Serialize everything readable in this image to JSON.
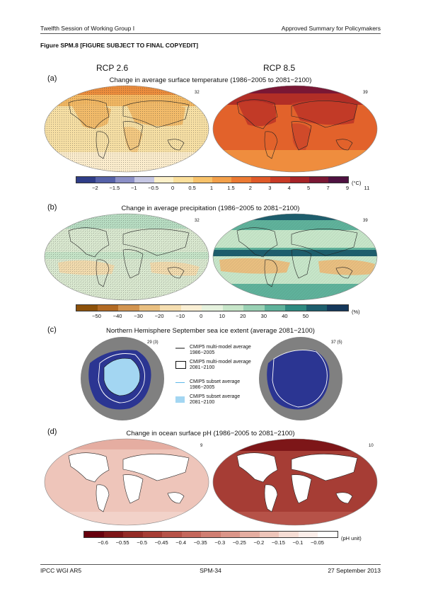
{
  "header": {
    "left": "Twelfth Session of Working Group I",
    "right": "Approved Summary for Policymakers"
  },
  "figure_title": "Figure SPM.8 [FIGURE SUBJECT TO FINAL COPYEDIT]",
  "scenarios": {
    "left": "RCP 2.6",
    "right": "RCP 8.5"
  },
  "panels": {
    "a": {
      "label": "(a)",
      "title": "Change in average surface temperature (1986−2005 to 2081−2100)",
      "left_count": "32",
      "right_count": "39",
      "colorbar": {
        "colors": [
          "#2f3d87",
          "#5561a8",
          "#8b8fc6",
          "#c5c6e3",
          "#fcf0c9",
          "#fbdf9b",
          "#f8c26a",
          "#f3a04a",
          "#ec7a33",
          "#e05a29",
          "#c83a26",
          "#a62327",
          "#7a1734",
          "#4e1140"
        ],
        "ticks": [
          "−2",
          "−1.5",
          "−1",
          "−0.5",
          "0",
          "0.5",
          "1",
          "1.5",
          "2",
          "3",
          "4",
          "5",
          "7",
          "9",
          "11"
        ],
        "unit": "(°C)"
      }
    },
    "b": {
      "label": "(b)",
      "title": "Change in average precipitation (1986−2005 to 2081−2100)",
      "left_count": "32",
      "right_count": "39",
      "colorbar": {
        "colors": [
          "#8c510a",
          "#b26a24",
          "#d29450",
          "#e9bf80",
          "#f5deb0",
          "#faefd4",
          "#e6f2de",
          "#c7e6c9",
          "#99d1b4",
          "#5fb29b",
          "#2e8a80",
          "#1d5e6d",
          "#15385b"
        ],
        "ticks": [
          "−50",
          "−40",
          "−30",
          "−20",
          "−10",
          "0",
          "10",
          "20",
          "30",
          "40",
          "50"
        ],
        "unit": "(%)"
      }
    },
    "c": {
      "label": "(c)",
      "title": "Northern Hemisphere September sea ice extent (average 2081−2100)",
      "left_count": "29 (3)",
      "right_count": "37 (5)",
      "legend": [
        {
          "text": "CMIP5 multi-model average 1986−2005"
        },
        {
          "text": "CMIP5 multi-model average 2081−2100"
        },
        {
          "text": "CMIP5 subset average 1986−2005"
        },
        {
          "text": "CMIP5 subset average 2081−2100"
        }
      ]
    },
    "d": {
      "label": "(d)",
      "title": "Change in ocean surface pH (1986−2005 to 2081−2100)",
      "left_count": "9",
      "right_count": "10",
      "colorbar": {
        "colors": [
          "#67000d",
          "#7d1618",
          "#932b27",
          "#a63d35",
          "#b65248",
          "#c4675c",
          "#d07e72",
          "#db9589",
          "#e5ada1",
          "#eec5ba",
          "#f6ddd5",
          "#fbeeea",
          "#ffffff"
        ],
        "ticks": [
          "−0.6",
          "−0.55",
          "−0.5",
          "−0.45",
          "−0.4",
          "−0.35",
          "−0.3",
          "−0.25",
          "−0.2",
          "−0.15",
          "−0.1",
          "−0.05"
        ],
        "unit": "(pH unit)"
      }
    }
  },
  "footer": {
    "left": "IPCC WGI AR5",
    "center": "SPM-34",
    "right": "27 September 2013"
  }
}
